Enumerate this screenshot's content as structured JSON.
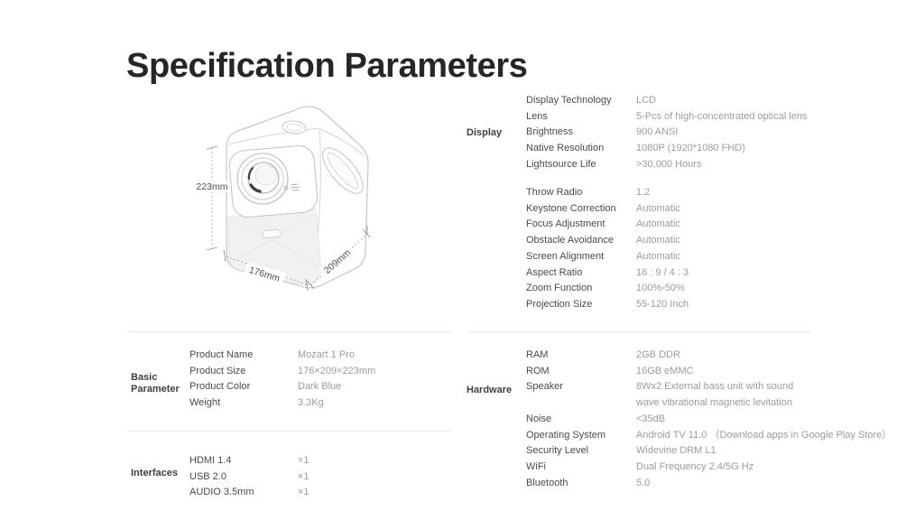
{
  "page": {
    "title": "Specification Parameters"
  },
  "colors": {
    "title_text": "#262626",
    "category_label_text": "#3f3f3f",
    "spec_name_text": "#4a4a4a",
    "spec_value_text": "#9c9c9c",
    "divider": "#e9e9e9",
    "line_art_stroke": "#c3c6c8",
    "grille_fill": "#f0f1f2"
  },
  "figure": {
    "height_label": "223mm",
    "width_label": "176mm",
    "depth_label": "209mm"
  },
  "display": {
    "label": "Display",
    "group1": [
      {
        "name": "Display Technology",
        "value": "LCD"
      },
      {
        "name": "Lens",
        "value": "5-Pcs of high-concentrated optical lens"
      },
      {
        "name": "Brightness",
        "value": "900 ANSI"
      },
      {
        "name": "Native Resolution",
        "value": "1080P (1920*1080 FHD)"
      },
      {
        "name": "Lightsource Life",
        "value": ">30,000 Hours"
      }
    ],
    "group2": [
      {
        "name": "Throw Radio",
        "value": "1.2"
      },
      {
        "name": "Keystone Correction",
        "value": "Automatic"
      },
      {
        "name": "Focus Adjustment",
        "value": "Automatic"
      },
      {
        "name": "Obstacle Avoidance",
        "value": "Automatic"
      },
      {
        "name": "Screen Alignment",
        "value": "Automatic"
      },
      {
        "name": "Aspect Ratio",
        "value": "16 : 9 / 4 : 3"
      },
      {
        "name": "Zoom Function",
        "value": "100%-50%"
      },
      {
        "name": "Projection Size",
        "value": "55-120 Inch"
      }
    ]
  },
  "basic": {
    "label": "Basic Parameter",
    "rows": [
      {
        "name": "Product Name",
        "value": "Mozart 1 Pro"
      },
      {
        "name": "Product Size",
        "value": "176×209×223mm"
      },
      {
        "name": "Product Color",
        "value": "Dark Blue"
      },
      {
        "name": "Weight",
        "value": "3.3Kg"
      }
    ]
  },
  "interfaces": {
    "label": "Interfaces",
    "rows": [
      {
        "name": "HDMI 1.4",
        "value": "×1"
      },
      {
        "name": "USB 2.0",
        "value": "×1"
      },
      {
        "name": "AUDIO 3.5mm",
        "value": "×1"
      }
    ]
  },
  "hardware": {
    "label": "Hardware",
    "rows": [
      {
        "name": "RAM",
        "value": "2GB DDR"
      },
      {
        "name": "ROM",
        "value": "16GB eMMC"
      },
      {
        "name": "Speaker",
        "value": [
          "8Wx2 External bass unit with sound",
          "wave vibrational magnetic levitation"
        ]
      },
      {
        "name": "Noise",
        "value": "<35dB"
      },
      {
        "name": "Operating System",
        "value": "Android TV 11.0 （Download apps in Google Play Store）"
      },
      {
        "name": "Security Level",
        "value": "Widevine DRM L1"
      },
      {
        "name": "WiFi",
        "value": "Dual Frequency 2.4/5G Hz"
      },
      {
        "name": "Bluetooth",
        "value": "5.0"
      }
    ]
  }
}
